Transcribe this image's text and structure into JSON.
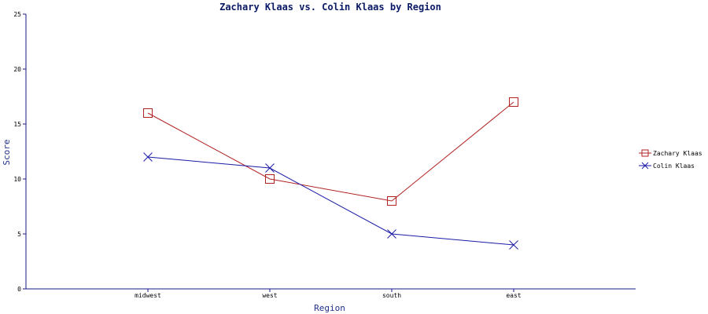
{
  "chart_data": {
    "type": "line",
    "title": "Zachary Klaas vs. Colin Klaas by Region",
    "xlabel": "Region",
    "ylabel": "Score",
    "categories": [
      "midwest",
      "west",
      "south",
      "east"
    ],
    "ylim": [
      0,
      25
    ],
    "yticks": [
      0,
      5,
      10,
      15,
      20,
      25
    ],
    "grid": false,
    "legend_position": "right",
    "series": [
      {
        "name": "Zachary Klaas",
        "values": [
          16,
          10,
          8,
          17
        ],
        "color": "#b22222",
        "marker": "square"
      },
      {
        "name": "Colin Klaas",
        "values": [
          12,
          11,
          5,
          4
        ],
        "color": "#1a1aa6",
        "marker": "x"
      }
    ]
  }
}
